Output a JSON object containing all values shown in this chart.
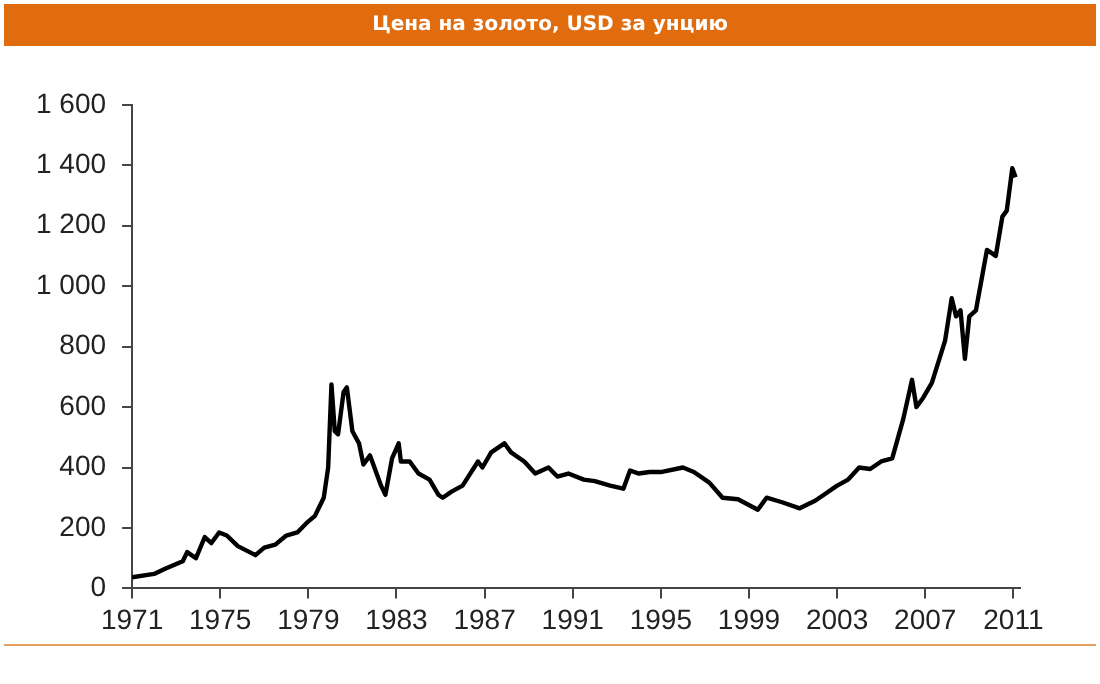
{
  "chart_data": {
    "type": "line",
    "title": "Цена на золото, USD за унцию",
    "x": [
      1971,
      1972,
      1972.5,
      1973.3,
      1973.5,
      1973.9,
      1974.3,
      1974.6,
      1974.95,
      1975.3,
      1975.8,
      1976.6,
      1977,
      1977.5,
      1978,
      1978.5,
      1978.9,
      1979.3,
      1979.7,
      1979.9,
      1980.05,
      1980.2,
      1980.35,
      1980.6,
      1980.75,
      1981,
      1981.3,
      1981.5,
      1981.8,
      1982.3,
      1982.5,
      1982.8,
      1983.1,
      1983.2,
      1983.6,
      1984,
      1984.5,
      1984.9,
      1985.1,
      1985.5,
      1986,
      1986.7,
      1986.9,
      1987.3,
      1987.9,
      1988.2,
      1988.8,
      1989.3,
      1989.9,
      1990.3,
      1990.8,
      1991.5,
      1992,
      1992.7,
      1993.3,
      1993.6,
      1994,
      1994.5,
      1995,
      1996,
      1996.5,
      1997.2,
      1997.8,
      1998.5,
      1999.4,
      1999.8,
      2000.5,
      2001.3,
      2002,
      2002.5,
      2003,
      2003.5,
      2004,
      2004.5,
      2005,
      2005.5,
      2006,
      2006.4,
      2006.6,
      2006.9,
      2007.3,
      2007.9,
      2008.2,
      2008.4,
      2008.6,
      2008.8,
      2009,
      2009.3,
      2009.8,
      2010.2,
      2010.5,
      2010.7,
      2010.95,
      2011.1
    ],
    "series": [
      {
        "color": "#000000",
        "values": [
          37,
          48,
          65,
          90,
          120,
          100,
          170,
          150,
          185,
          175,
          140,
          110,
          135,
          145,
          175,
          185,
          215,
          240,
          300,
          400,
          675,
          520,
          510,
          650,
          665,
          520,
          480,
          410,
          440,
          340,
          310,
          430,
          480,
          420,
          420,
          380,
          360,
          310,
          300,
          320,
          340,
          420,
          400,
          450,
          480,
          450,
          420,
          380,
          400,
          370,
          380,
          360,
          355,
          340,
          330,
          390,
          380,
          385,
          385,
          400,
          385,
          350,
          300,
          295,
          260,
          300,
          285,
          265,
          290,
          315,
          340,
          360,
          400,
          395,
          420,
          430,
          560,
          690,
          600,
          630,
          680,
          820,
          960,
          900,
          920,
          760,
          900,
          920,
          1120,
          1100,
          1230,
          1250,
          1390,
          1360
        ]
      }
    ],
    "xlim": [
      1971,
      2011.3
    ],
    "xticks": [
      1971,
      1975,
      1979,
      1983,
      1987,
      1991,
      1995,
      1999,
      2003,
      2007,
      2011
    ],
    "ylim": [
      0,
      1600
    ],
    "yticks": [
      0,
      200,
      400,
      600,
      800,
      {
        "value": 1000,
        "label": "1 000"
      },
      {
        "value": 1200,
        "label": "1 200"
      },
      {
        "value": 1400,
        "label": "1 400"
      },
      {
        "value": 1600,
        "label": "1 600"
      }
    ],
    "grid": false,
    "legend": false,
    "marker": "none",
    "line_style": "solid"
  }
}
